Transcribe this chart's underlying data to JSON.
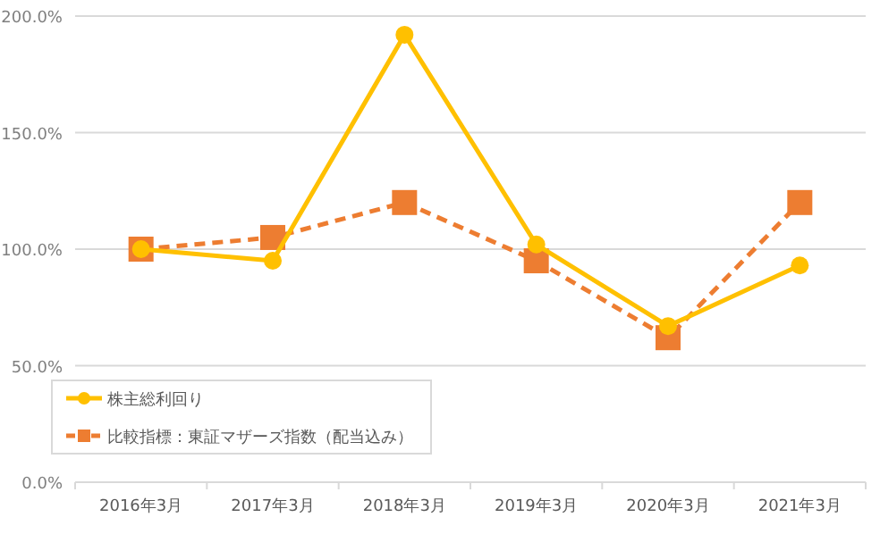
{
  "chart_data": {
    "type": "line",
    "categories": [
      "2016年3月",
      "2017年3月",
      "2018年3月",
      "2019年3月",
      "2020年3月",
      "2021年3月"
    ],
    "series": [
      {
        "name": "株主総利回り",
        "color": "#ffc000",
        "values": [
          100,
          95,
          192,
          102,
          67,
          93
        ],
        "marker": "circle",
        "line_style": "solid"
      },
      {
        "name": "比較指標：東証マザーズ指数（配当込み）",
        "color": "#ed7d31",
        "values": [
          100,
          105,
          120,
          95,
          62,
          120
        ],
        "marker": "square",
        "line_style": "dashed"
      }
    ],
    "ylim": [
      0,
      200
    ],
    "yticks": [
      {
        "value": 0,
        "label": "0.0%"
      },
      {
        "value": 50,
        "label": "50.0%"
      },
      {
        "value": 100,
        "label": "100.0%"
      },
      {
        "value": 150,
        "label": "150.0%"
      },
      {
        "value": 200,
        "label": "200.0%"
      }
    ],
    "grid": "y",
    "legend": "bottom left"
  }
}
